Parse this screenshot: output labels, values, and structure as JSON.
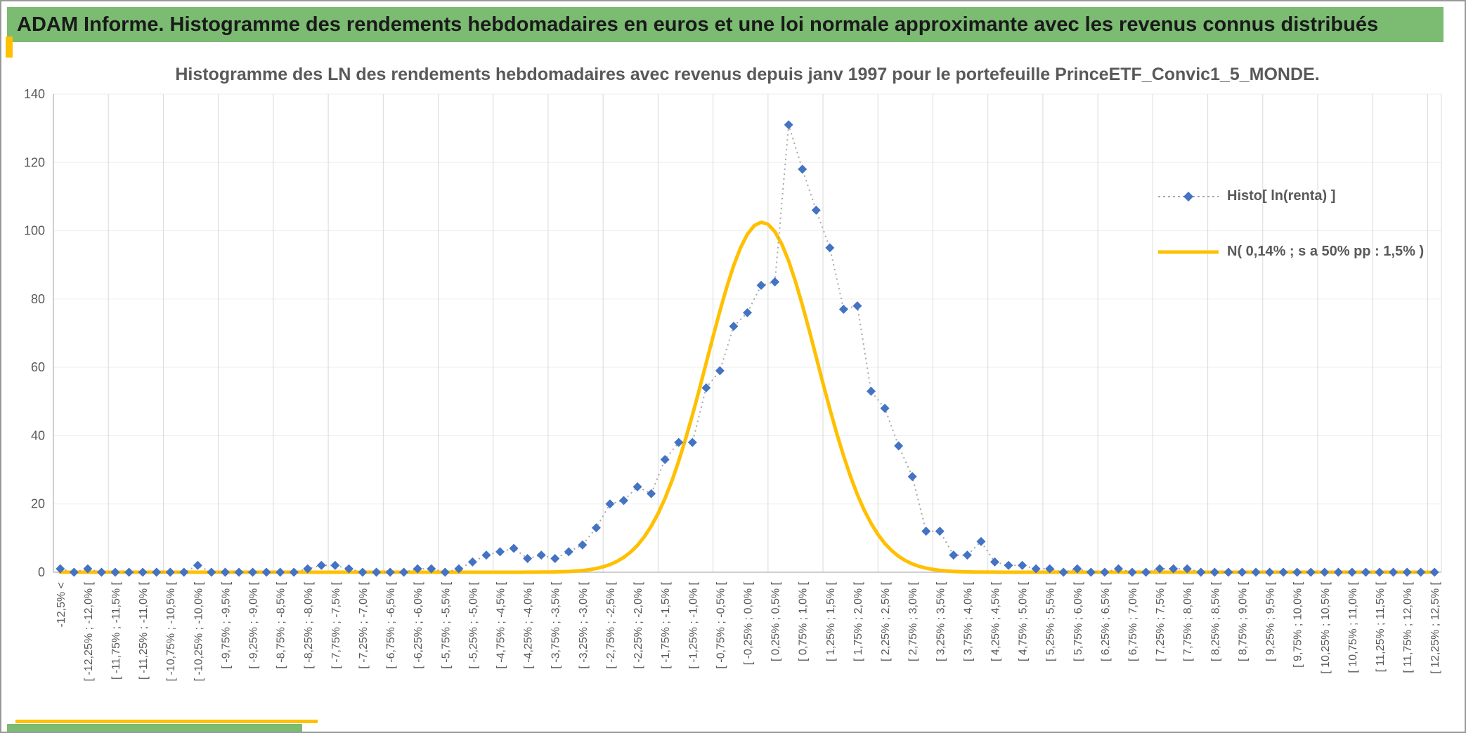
{
  "window": {
    "background": "#FFFFFF",
    "border_color": "#999999"
  },
  "header": {
    "title": "ADAM Informe. Histogramme des rendements hebdomadaires en euros et une loi normale approximante avec les revenus connus distribués",
    "background": "#7BBB72",
    "text_color": "#1A1A1A"
  },
  "decorations": {
    "accent_yellow": "#FFC000",
    "accent_green": "#7BBB72"
  },
  "chart_data": {
    "type": "line",
    "subtype": "histogram-frequency-polygon-with-normal-curve",
    "title": "Histogramme des LN des rendements hebdomadaires avec revenus depuis janv 1997 pour le portefeuille PrinceETF_Convic1_5_MONDE.",
    "xlabel": "",
    "ylabel": "",
    "ylim": [
      0,
      140
    ],
    "y_ticks": [
      0,
      20,
      40,
      60,
      80,
      100,
      120,
      140
    ],
    "grid": {
      "vertical": true,
      "horizontal": false,
      "color": "#D9D9D9"
    },
    "axis_color": "#595959",
    "axis_line_color": "#BFBFBF",
    "n_bins": 101,
    "tick_every": 2,
    "x_tick_labels": [
      "-12,5% <",
      "[ -12,25% ; -12,0% [",
      "[ -11,75% ; -11,5% [",
      "[ -11,25% ; -11,0% [",
      "[ -10,75% ; -10,5% [",
      "[ -10,25% ; -10,0% [",
      "[ -9,75% ; -9,5% [",
      "[ -9,25% ; -9,0% [",
      "[ -8,75% ; -8,5% [",
      "[ -8,25% ; -8,0% [",
      "[ -7,75% ; -7,5% [",
      "[ -7,25% ; -7,0% [",
      "[ -6,75% ; -6,5% [",
      "[ -6,25% ; -6,0% [",
      "[ -5,75% ; -5,5% [",
      "[ -5,25% ; -5,0% [",
      "[ -4,75% ; -4,5% [",
      "[ -4,25% ; -4,0% [",
      "[ -3,75% ; -3,5% [",
      "[ -3,25% ; -3,0% [",
      "[ -2,75% ; -2,5% [",
      "[ -2,25% ; -2,0% [",
      "[ -1,75% ; -1,5% [",
      "[ -1,25% ; -1,0% [",
      "[ -0,75% ; -0,5% [",
      "[ -0,25% ; 0,0% [",
      "[ 0,25% ; 0,5% [",
      "[ 0,75% ; 1,0% [",
      "[ 1,25% ; 1,5% [",
      "[ 1,75% ; 2,0% [",
      "[ 2,25% ; 2,5% [",
      "[ 2,75% ; 3,0% [",
      "[ 3,25% ; 3,5% [",
      "[ 3,75% ; 4,0% [",
      "[ 4,25% ; 4,5% [",
      "[ 4,75% ; 5,0% [",
      "[ 5,25% ; 5,5% [",
      "[ 5,75% ; 6,0% [",
      "[ 6,25% ; 6,5% [",
      "[ 6,75% ; 7,0% [",
      "[ 7,25% ; 7,5% [",
      "[ 7,75% ; 8,0% [",
      "[ 8,25% ; 8,5% [",
      "[ 8,75% ; 9,0% [",
      "[ 9,25% ; 9,5% [",
      "[ 9,75% ; 10,0% [",
      "[ 10,25% ; 10,5% [",
      "[ 10,75% ; 11,0% [",
      "[ 11,25% ; 11,5% [",
      "[ 11,75% ; 12,0% [",
      "[ 12,25% ; 12,5% ["
    ],
    "series": [
      {
        "name": "Histo[ ln(renta) ]",
        "type": "scatter-line",
        "marker": "diamond",
        "color": "#4472C4",
        "line_color": "#A6A6A6",
        "values": [
          1,
          0,
          1,
          0,
          0,
          0,
          0,
          0,
          0,
          0,
          2,
          0,
          0,
          0,
          0,
          0,
          0,
          0,
          1,
          2,
          2,
          1,
          0,
          0,
          0,
          0,
          1,
          1,
          0,
          1,
          3,
          5,
          6,
          7,
          4,
          5,
          4,
          6,
          8,
          13,
          20,
          21,
          25,
          23,
          33,
          38,
          38,
          54,
          59,
          72,
          76,
          84,
          85,
          131,
          118,
          106,
          95,
          77,
          78,
          53,
          48,
          37,
          28,
          12,
          12,
          5,
          5,
          9,
          3,
          2,
          2,
          1,
          1,
          0,
          1,
          0,
          0,
          1,
          0,
          0,
          1,
          1,
          1,
          0,
          0,
          0,
          0,
          0,
          0,
          0,
          0,
          0,
          0,
          0,
          0,
          0,
          0,
          0,
          0,
          0,
          0
        ]
      },
      {
        "name": "N( 0,14% ; s a 50% pp : 1,5% )",
        "type": "gaussian-curve",
        "color": "#FFC000",
        "mean_pct": 0.14,
        "sigma_pct": 1.0,
        "peak": 102.5,
        "bin_width_pct": 0.25,
        "x_center_start_pct": -12.625
      }
    ],
    "legend": {
      "position": "right"
    }
  }
}
